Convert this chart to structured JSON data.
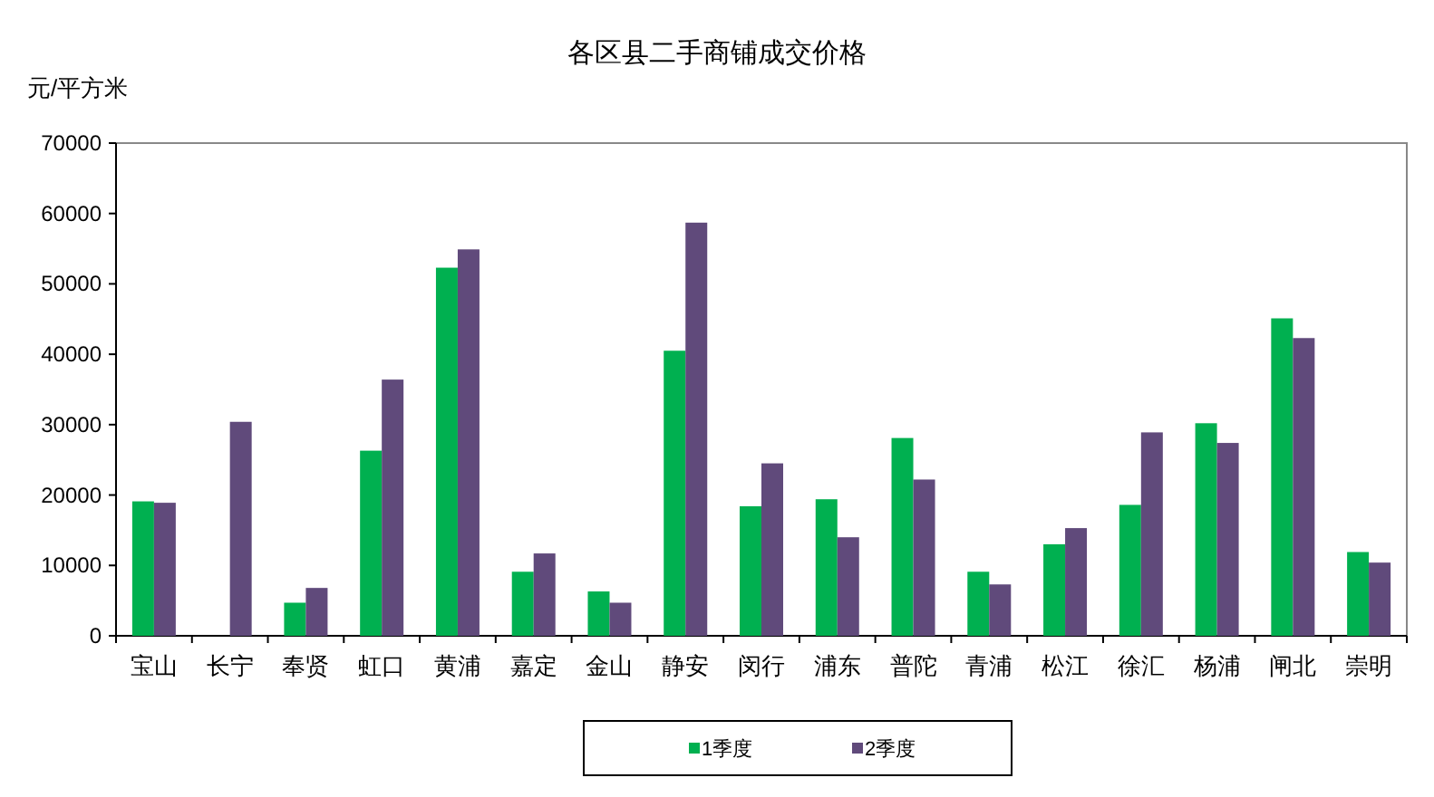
{
  "chart_data": {
    "type": "bar",
    "title": "各区县二手商铺成交价格",
    "ylabel": "元/平方米",
    "categories": [
      "宝山",
      "长宁",
      "奉贤",
      "虹口",
      "黄浦",
      "嘉定",
      "金山",
      "静安",
      "闵行",
      "浦东",
      "普陀",
      "青浦",
      "松江",
      "徐汇",
      "杨浦",
      "闸北",
      "崇明"
    ],
    "series": [
      {
        "name": "1季度",
        "color": "#00b050",
        "values": [
          19100,
          null,
          4700,
          26300,
          52300,
          9100,
          6300,
          40500,
          18400,
          19400,
          28100,
          9100,
          13000,
          18600,
          30200,
          45100,
          11900
        ]
      },
      {
        "name": "2季度",
        "color": "#604a7b",
        "values": [
          18900,
          30400,
          6800,
          36400,
          54900,
          11700,
          4700,
          58700,
          24500,
          14000,
          22200,
          7300,
          15300,
          28900,
          27400,
          42300,
          10400
        ]
      }
    ],
    "ylim": [
      0,
      70000
    ],
    "yticks": [
      0,
      10000,
      20000,
      30000,
      40000,
      50000,
      60000,
      70000
    ],
    "grid": false,
    "legend": "bottom"
  }
}
